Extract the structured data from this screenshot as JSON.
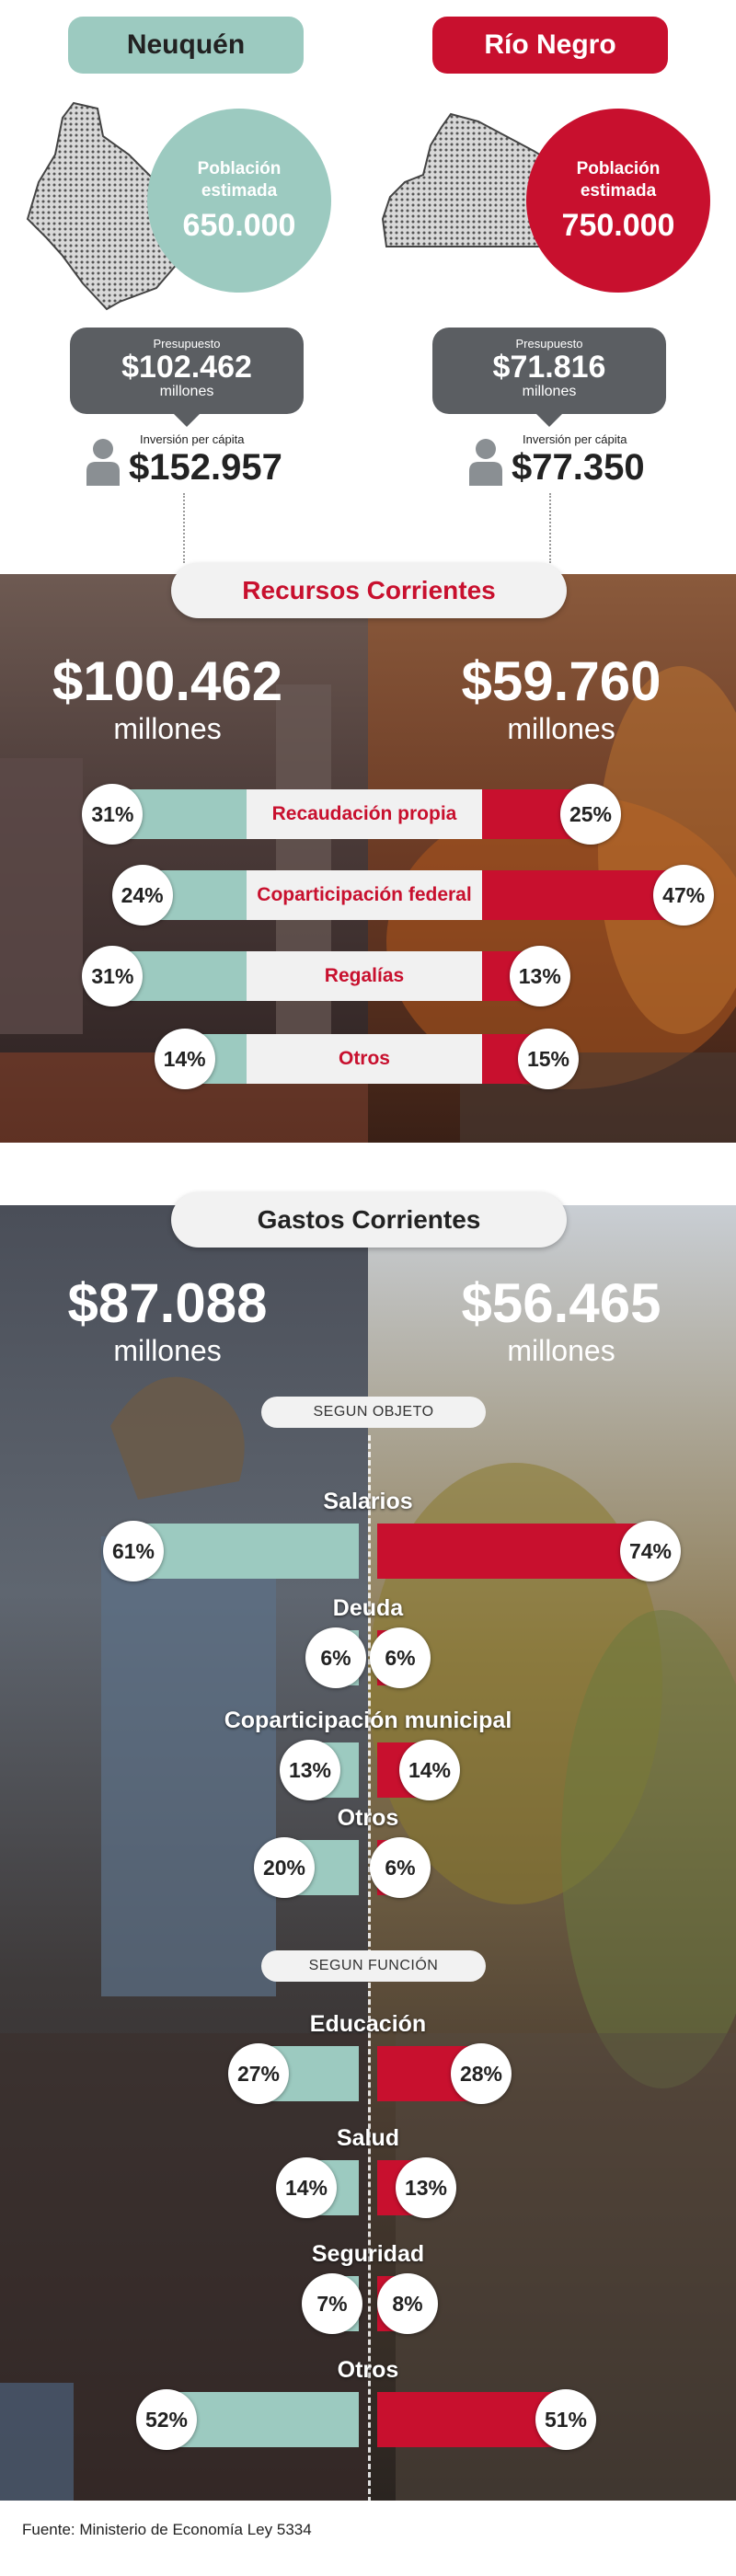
{
  "header": {
    "left_name": "Neuquén",
    "right_name": "Río Negro",
    "population_label": "Población estimada",
    "left_population": "650.000",
    "right_population": "750.000",
    "budget_label": "Presupuesto",
    "budget_unit": "millones",
    "left_budget": "$102.462",
    "right_budget": "$71.816",
    "percapita_label": "Inversión per cápita",
    "left_percapita": "$152.957",
    "right_percapita": "$77.350"
  },
  "recursos": {
    "title": "Recursos Corrientes",
    "unit": "millones",
    "left_total": "$100.462",
    "right_total": "$59.760"
  },
  "gastos": {
    "title": "Gastos Corrientes",
    "unit": "millones",
    "left_total": "$87.088",
    "right_total": "$56.465",
    "subhead_objeto": "SEGUN OBJETO",
    "subhead_funcion": "SEGUN FUNCIÓN"
  },
  "source": "Fuente: Ministerio de Economía Ley 5334",
  "colors": {
    "neuquen": "#9ccac0",
    "rio_negro": "#c8102e",
    "label_bg": "#f1f1f1"
  },
  "chart_data": [
    {
      "type": "bar",
      "title": "Recursos Corrientes",
      "categories": [
        "Recaudación propia",
        "Coparticipación federal",
        "Regalías",
        "Otros"
      ],
      "series": [
        {
          "name": "Neuquén",
          "values": [
            31,
            24,
            31,
            14
          ]
        },
        {
          "name": "Río Negro",
          "values": [
            25,
            47,
            13,
            15
          ]
        }
      ],
      "unit": "%"
    },
    {
      "type": "bar",
      "title": "Gastos Corrientes",
      "groups": [
        {
          "name": "SEGUN OBJETO",
          "categories": [
            "Salarios",
            "Deuda",
            "Coparticipación municipal",
            "Otros"
          ],
          "series": [
            {
              "name": "Neuquén",
              "values": [
                61,
                6,
                13,
                20
              ]
            },
            {
              "name": "Río Negro",
              "values": [
                74,
                6,
                14,
                6
              ]
            }
          ]
        },
        {
          "name": "SEGUN FUNCIÓN",
          "categories": [
            "Educación",
            "Salud",
            "Seguridad",
            "Otros"
          ],
          "series": [
            {
              "name": "Neuquén",
              "values": [
                27,
                14,
                7,
                52
              ]
            },
            {
              "name": "Río Negro",
              "values": [
                28,
                13,
                8,
                51
              ]
            }
          ]
        }
      ],
      "unit": "%"
    }
  ]
}
